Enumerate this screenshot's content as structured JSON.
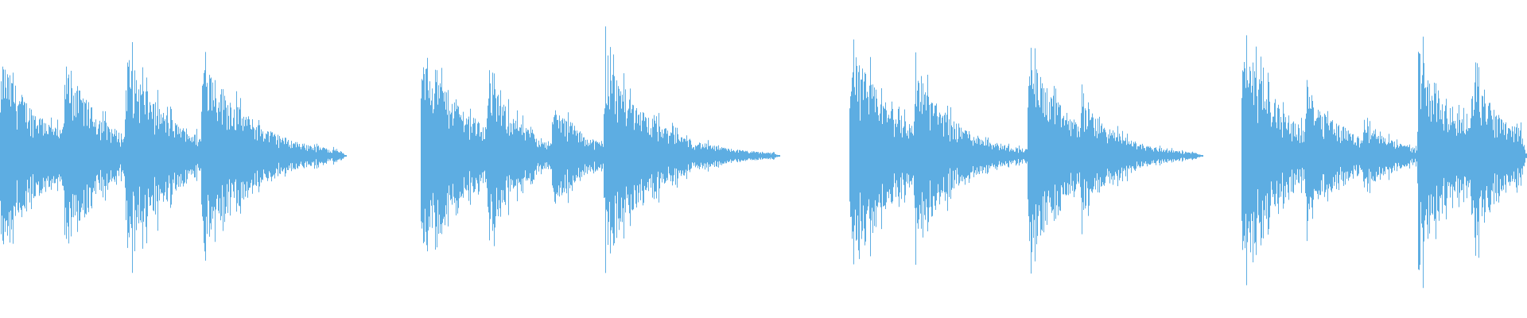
{
  "waveform": {
    "color": "#5dade2",
    "background": "#ffffff",
    "segment_count": 4
  }
}
